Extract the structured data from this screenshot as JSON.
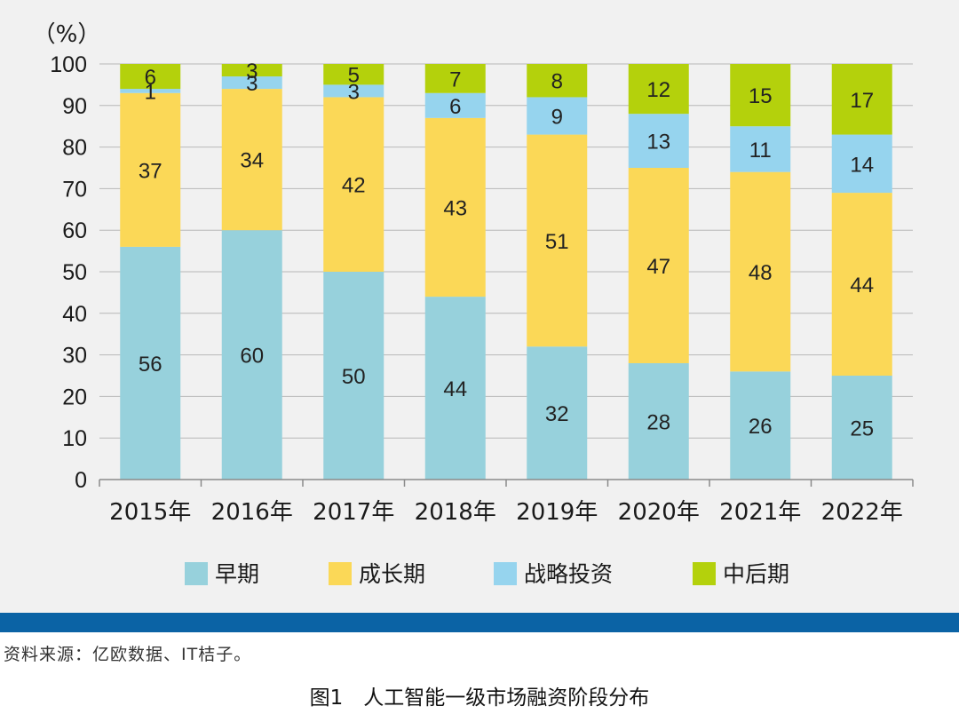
{
  "chart_data": {
    "type": "bar",
    "stacked": true,
    "unit_label": "（%）",
    "ylim": [
      0,
      100
    ],
    "yticks": [
      "0",
      "10",
      "20",
      "30",
      "40",
      "50",
      "60",
      "70",
      "80",
      "90",
      "100"
    ],
    "categories": [
      "2015年",
      "2016年",
      "2017年",
      "2018年",
      "2019年",
      "2020年",
      "2021年",
      "2022年"
    ],
    "series": [
      {
        "name": "早期",
        "color": "#97d1dc",
        "values": [
          56,
          60,
          50,
          44,
          32,
          28,
          26,
          25
        ]
      },
      {
        "name": "成长期",
        "color": "#fbd857",
        "values": [
          37,
          34,
          42,
          43,
          51,
          47,
          48,
          44
        ]
      },
      {
        "name": "战略投资",
        "color": "#96d4ee",
        "values": [
          1,
          3,
          3,
          6,
          9,
          13,
          11,
          14
        ]
      },
      {
        "name": "中后期",
        "color": "#b4d10c",
        "values": [
          6,
          3,
          5,
          7,
          8,
          12,
          15,
          17
        ]
      }
    ],
    "grid": true,
    "legend_position": "bottom"
  },
  "colors": {
    "band": "#0b63a5",
    "gridline": "#b8b8b8",
    "axis": "#8a8a8a"
  },
  "source_note": "资料来源：亿欧数据、IT桔子。",
  "figure_caption": "图1　人工智能一级市场融资阶段分布"
}
